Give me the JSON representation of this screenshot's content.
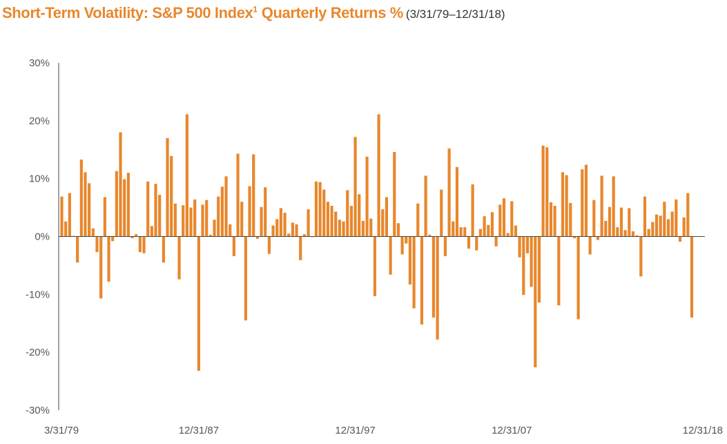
{
  "title": {
    "main": "Short-Term Volatility: S&P 500 Index",
    "superscript": "1",
    "main_suffix": " Quarterly Returns %",
    "range": "(3/31/79–12/31/18)"
  },
  "colors": {
    "bar": "#e8872c",
    "axis": "#444444",
    "title": "#e8872c"
  },
  "chart_data": {
    "type": "bar",
    "title": "Short-Term Volatility: S&P 500 Index Quarterly Returns %",
    "subtitle": "(3/31/79–12/31/18)",
    "xlabel": "",
    "ylabel": "",
    "ylim": [
      -30,
      30
    ],
    "y_ticks": [
      30,
      20,
      10,
      0,
      -10,
      -20,
      -30
    ],
    "y_tick_labels": [
      "30%",
      "20%",
      "10%",
      "0%",
      "-10%",
      "-20%",
      "-30%"
    ],
    "x_tick_labels": [
      "3/31/79",
      "12/31/87",
      "12/31/97",
      "12/31/07",
      "12/31/18"
    ],
    "x_tick_indices": [
      0,
      35,
      75,
      115,
      159
    ],
    "grid": false,
    "legend": "none",
    "values": [
      6.9,
      2.6,
      7.5,
      0.1,
      -4.5,
      13.3,
      11.1,
      9.2,
      1.4,
      -2.7,
      -10.7,
      6.8,
      -7.8,
      -0.8,
      11.3,
      18.0,
      9.9,
      11.0,
      -0.3,
      0.4,
      -2.7,
      -2.9,
      9.5,
      1.8,
      9.1,
      7.2,
      -4.5,
      17.0,
      13.9,
      5.7,
      -7.4,
      5.4,
      21.1,
      5.0,
      6.4,
      -23.2,
      5.5,
      6.3,
      0.3,
      2.9,
      6.9,
      8.6,
      10.4,
      2.1,
      -3.4,
      14.3,
      6.0,
      -14.5,
      8.7,
      14.2,
      -0.4,
      5.1,
      8.5,
      -3.0,
      1.9,
      3.0,
      4.9,
      4.1,
      0.5,
      2.4,
      2.1,
      -4.1,
      0.4,
      4.7,
      -0.1,
      9.5,
      9.4,
      8.1,
      6.0,
      5.3,
      4.3,
      2.9,
      2.6,
      8.0,
      5.3,
      17.2,
      7.3,
      2.7,
      13.8,
      3.1,
      -10.3,
      21.1,
      4.7,
      6.8,
      -6.6,
      14.6,
      2.3,
      -3.1,
      -1.2,
      -8.3,
      -12.4,
      5.7,
      -15.2,
      10.5,
      0.3,
      -14.0,
      -17.8,
      8.1,
      -3.4,
      15.2,
      2.6,
      12.0,
      1.6,
      1.6,
      -2.1,
      9.0,
      -2.4,
      1.3,
      3.5,
      2.0,
      4.2,
      -1.7,
      5.5,
      6.6,
      0.6,
      6.1,
      1.9,
      -3.6,
      -10.1,
      -2.9,
      -8.7,
      -22.6,
      -11.4,
      15.7,
      15.4,
      5.9,
      5.3,
      -11.9,
      11.1,
      10.6,
      5.8,
      -0.3,
      -14.3,
      11.6,
      12.4,
      -3.1,
      6.3,
      -0.6,
      10.5,
      2.7,
      5.1,
      10.4,
      1.6,
      5.0,
      1.1,
      4.9,
      0.9,
      0.2,
      -6.9,
      6.9,
      1.3,
      2.5,
      3.8,
      3.6,
      6.0,
      3.0,
      4.3,
      6.4,
      -0.9,
      3.3,
      7.5,
      -14.0
    ]
  }
}
